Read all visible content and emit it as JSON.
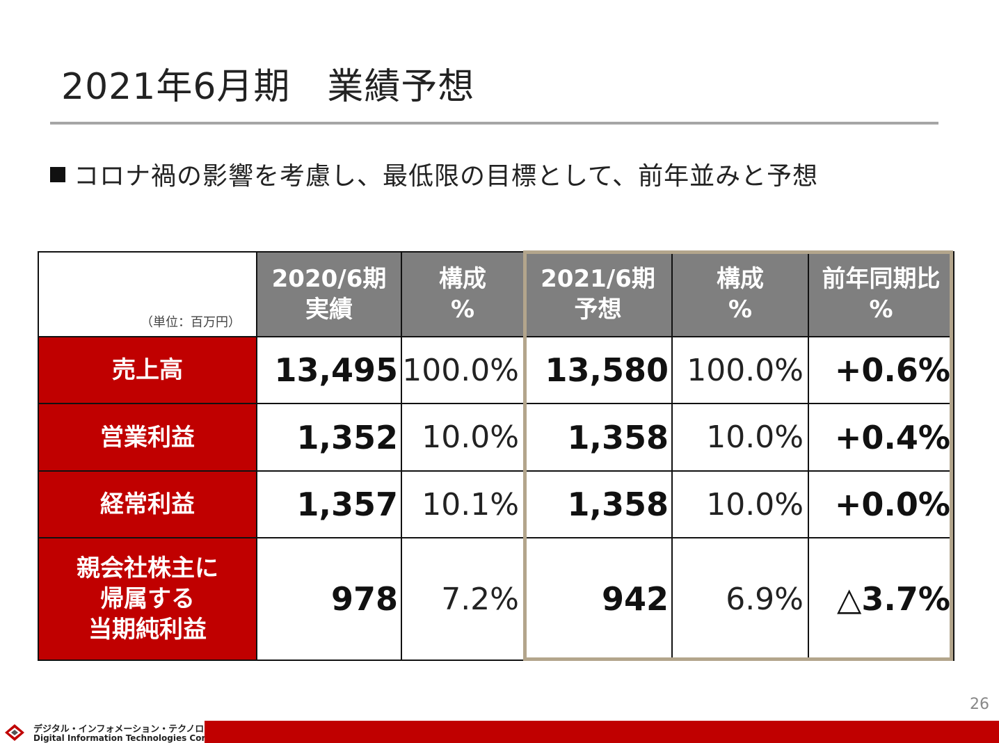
{
  "title": "2021年6月期　業績予想",
  "bullet": "コロナ禍の影響を考慮し、最低限の目標として、前年並みと予想",
  "table": {
    "unit": "（単位：百万円）",
    "headers": [
      {
        "line1": "2020/6期",
        "line2": "実績"
      },
      {
        "line1": "構成",
        "line2": "%"
      },
      {
        "line1": "2021/6期",
        "line2": "予想"
      },
      {
        "line1": "構成",
        "line2": "%"
      },
      {
        "line1": "前年同期比",
        "line2": "%"
      }
    ],
    "rows": [
      {
        "label": [
          "売上高"
        ],
        "actual": "13,495",
        "actual_pct": "100.0%",
        "forecast": "13,580",
        "forecast_pct": "100.0%",
        "yoy": "+0.6%"
      },
      {
        "label": [
          "営業利益"
        ],
        "actual": "1,352",
        "actual_pct": "10.0%",
        "forecast": "1,358",
        "forecast_pct": "10.0%",
        "yoy": "+0.4%"
      },
      {
        "label": [
          "経常利益"
        ],
        "actual": "1,357",
        "actual_pct": "10.1%",
        "forecast": "1,358",
        "forecast_pct": "10.0%",
        "yoy": "+0.0%"
      },
      {
        "label": [
          "親会社株主に",
          "帰属する",
          "当期純利益"
        ],
        "actual": "978",
        "actual_pct": "7.2%",
        "forecast": "942",
        "forecast_pct": "6.9%",
        "yoy": "△3.7%"
      }
    ]
  },
  "page_number": "26",
  "footer": {
    "company_jp": "デジタル・インフォメーション・テクノロジー株式会社",
    "company_en": "Digital Information Technologies Corporation"
  },
  "colors": {
    "accent_red": "#c00000",
    "header_gray": "#7f7f7f",
    "highlight_frame": "#b3a58c"
  }
}
